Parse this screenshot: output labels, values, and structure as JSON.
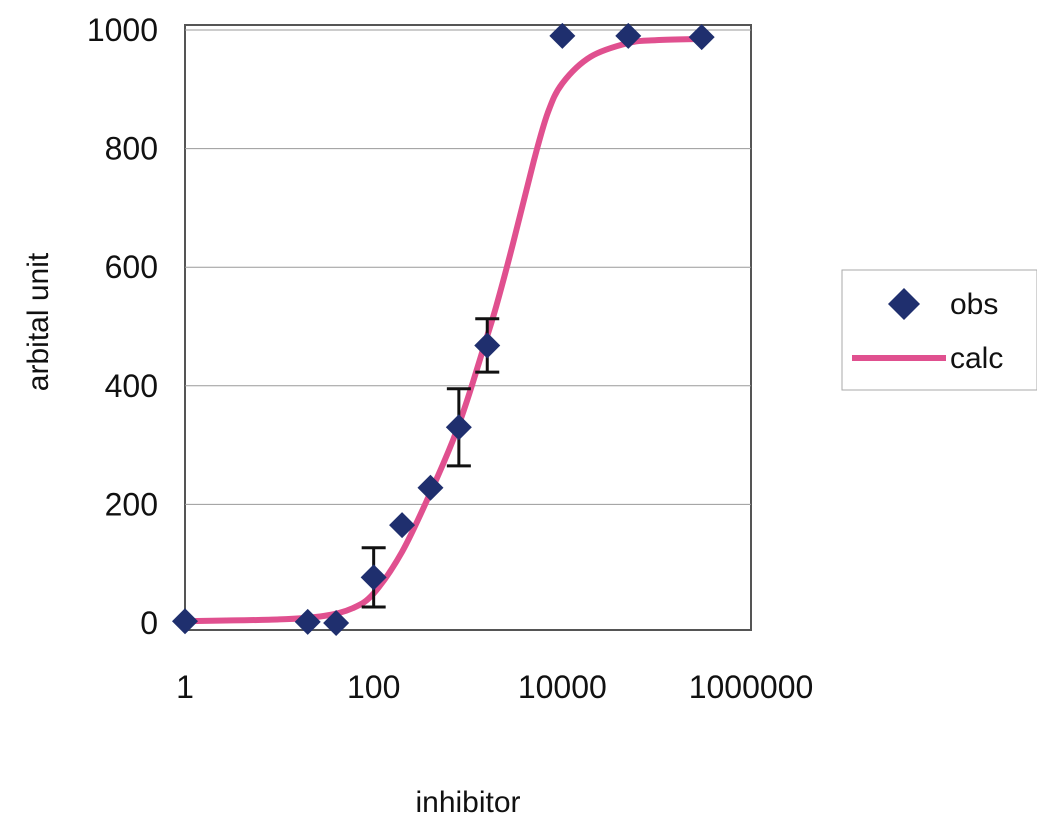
{
  "chart_data": {
    "type": "scatter",
    "title": "",
    "xlabel": "inhibitor",
    "ylabel": "arbital unit",
    "xscale": "log",
    "xlim": [
      1,
      1000000
    ],
    "ylim": [
      0,
      1000
    ],
    "x_ticks": [
      1,
      100,
      10000,
      1000000
    ],
    "x_tick_labels": [
      "1",
      "100",
      "10000",
      "1000000"
    ],
    "y_ticks": [
      0,
      200,
      400,
      600,
      800,
      1000
    ],
    "y_tick_labels": [
      "0",
      "200",
      "400",
      "600",
      "800",
      "1000"
    ],
    "grid": "horizontal",
    "legend_position": "right",
    "colors": {
      "obs": "#1f2f6e",
      "calc": "#e0508f",
      "grid": "#9a9a9a",
      "axis": "#555555"
    },
    "series": [
      {
        "name": "obs",
        "kind": "scatter",
        "marker": "diamond",
        "points": [
          {
            "x": 1,
            "y": 3
          },
          {
            "x": 20,
            "y": 2
          },
          {
            "x": 40,
            "y": 0
          },
          {
            "x": 100,
            "y": 77,
            "err": 50
          },
          {
            "x": 200,
            "y": 165
          },
          {
            "x": 400,
            "y": 228
          },
          {
            "x": 800,
            "y": 330,
            "err": 65
          },
          {
            "x": 1600,
            "y": 468,
            "err": 45
          },
          {
            "x": 10000,
            "y": 990
          },
          {
            "x": 50000,
            "y": 990
          },
          {
            "x": 300000,
            "y": 988
          }
        ]
      },
      {
        "name": "calc",
        "kind": "line",
        "x": [
          1,
          10,
          30,
          60,
          100,
          200,
          400,
          700,
          1000,
          1500,
          2000,
          3000,
          5000,
          7000,
          10000,
          20000,
          50000,
          100000,
          300000
        ],
        "y": [
          3,
          6,
          12,
          25,
          50,
          120,
          220,
          310,
          380,
          470,
          535,
          640,
          780,
          860,
          910,
          955,
          978,
          983,
          985
        ]
      }
    ],
    "legend": [
      "obs",
      "calc"
    ]
  }
}
